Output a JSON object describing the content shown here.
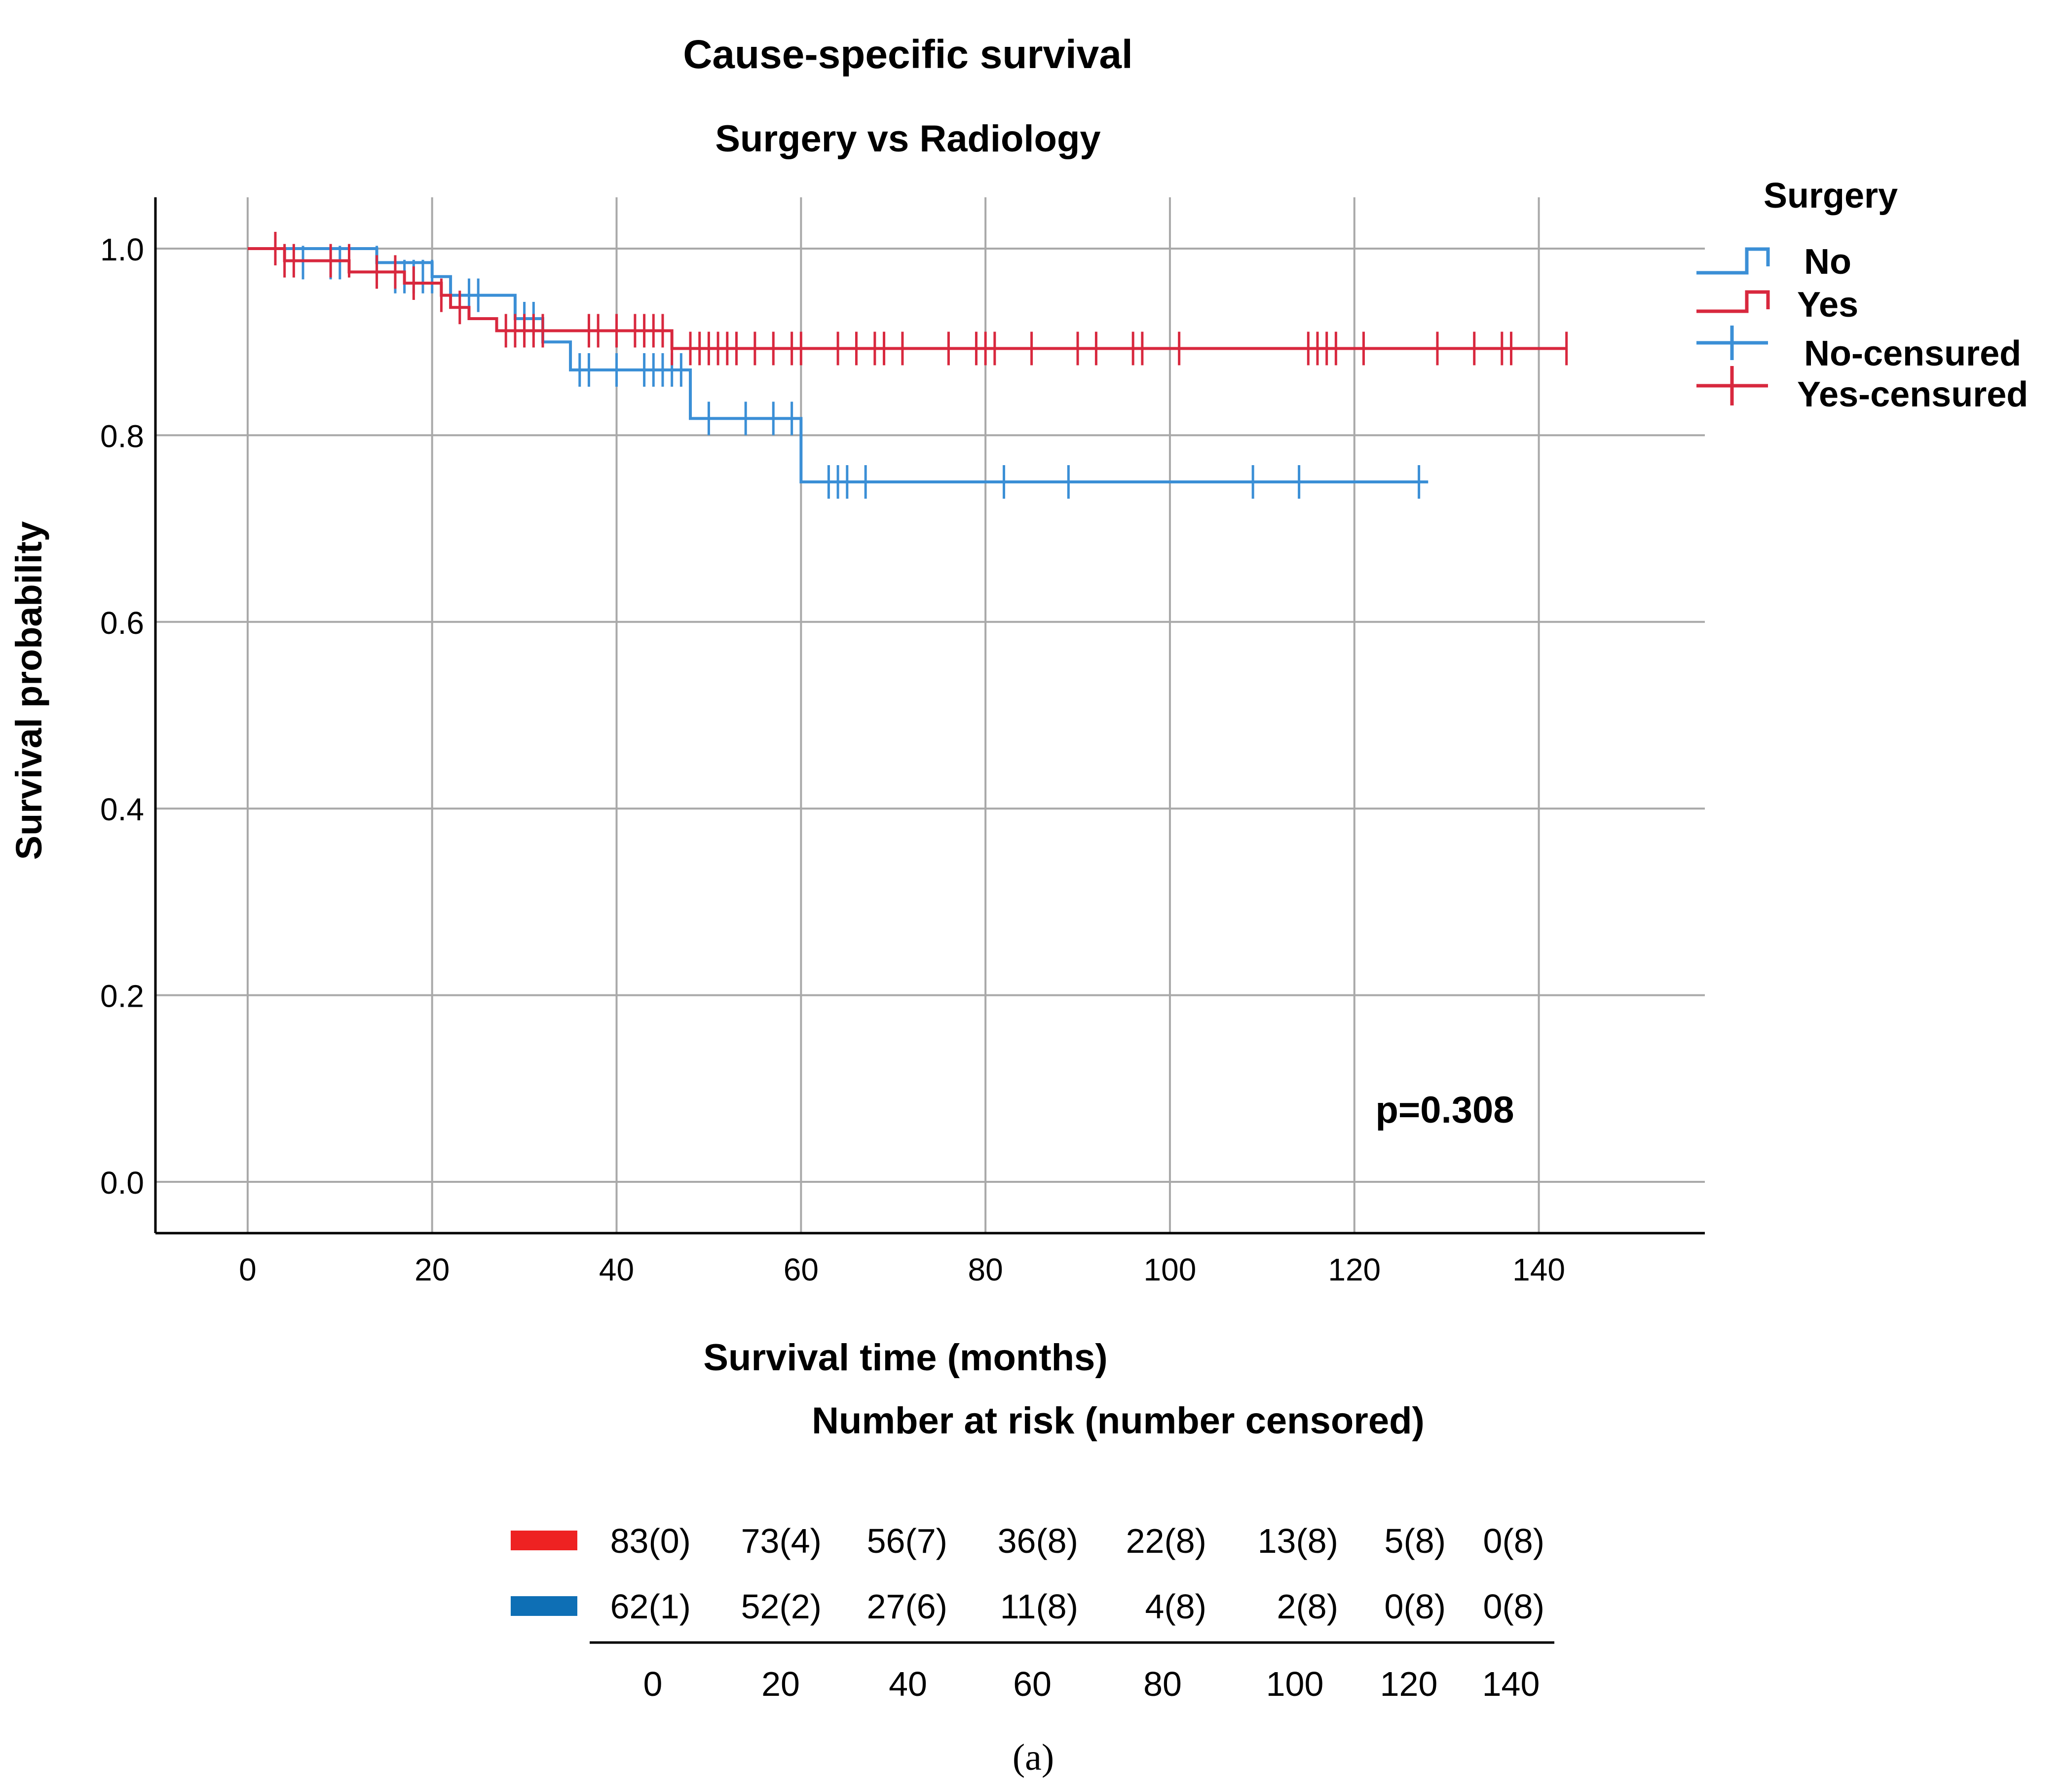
{
  "chart_data": {
    "type": "line",
    "subtype": "kaplan-meier",
    "title": "Cause-specific survival",
    "subtitle": "Surgery vs Radiology",
    "xlabel": "Survival time (months)",
    "ylabel": "Survival probability",
    "xlim": [
      -10,
      158
    ],
    "ylim": [
      -0.055,
      1.055
    ],
    "x_ticks": [
      "0",
      "20",
      "40",
      "60",
      "80",
      "100",
      "120",
      "140"
    ],
    "y_ticks": [
      "0.0",
      "0.2",
      "0.4",
      "0.6",
      "0.8",
      "1.0"
    ],
    "grid": true,
    "legend": {
      "title": "Surgery",
      "position": "right",
      "entries": [
        "No",
        "Yes",
        "No-censured",
        "Yes-censured"
      ]
    },
    "annotation": "p=0.308",
    "series": [
      {
        "name": "No",
        "color": "#3b8fd6",
        "steps": [
          [
            0,
            1.0
          ],
          [
            14,
            0.985
          ],
          [
            20,
            0.97
          ],
          [
            22,
            0.95
          ],
          [
            29,
            0.925
          ],
          [
            32,
            0.9
          ],
          [
            35,
            0.87
          ],
          [
            48,
            0.818
          ],
          [
            60,
            0.75
          ],
          [
            128,
            0.75
          ]
        ],
        "censored": [
          [
            6,
            0.985
          ],
          [
            9,
            0.985
          ],
          [
            10,
            0.985
          ],
          [
            14,
            0.985
          ],
          [
            16,
            0.97
          ],
          [
            17,
            0.97
          ],
          [
            18,
            0.97
          ],
          [
            19,
            0.97
          ],
          [
            20,
            0.97
          ],
          [
            24,
            0.95
          ],
          [
            25,
            0.95
          ],
          [
            30,
            0.925
          ],
          [
            31,
            0.925
          ],
          [
            36,
            0.87
          ],
          [
            37,
            0.87
          ],
          [
            40,
            0.87
          ],
          [
            43,
            0.87
          ],
          [
            44,
            0.87
          ],
          [
            45,
            0.87
          ],
          [
            46,
            0.87
          ],
          [
            47,
            0.87
          ],
          [
            50,
            0.818
          ],
          [
            54,
            0.818
          ],
          [
            57,
            0.818
          ],
          [
            59,
            0.818
          ],
          [
            63,
            0.75
          ],
          [
            64,
            0.75
          ],
          [
            65,
            0.75
          ],
          [
            67,
            0.75
          ],
          [
            82,
            0.75
          ],
          [
            89,
            0.75
          ],
          [
            109,
            0.75
          ],
          [
            114,
            0.75
          ],
          [
            127,
            0.75
          ]
        ]
      },
      {
        "name": "Yes",
        "color": "#d8283e",
        "steps": [
          [
            0,
            1.0
          ],
          [
            4,
            0.987
          ],
          [
            11,
            0.975
          ],
          [
            17,
            0.963
          ],
          [
            21,
            0.95
          ],
          [
            22,
            0.937
          ],
          [
            24,
            0.925
          ],
          [
            27,
            0.912
          ],
          [
            46,
            0.893
          ],
          [
            143,
            0.893
          ]
        ],
        "censored": [
          [
            3,
            1.0
          ],
          [
            4,
            0.987
          ],
          [
            5,
            0.987
          ],
          [
            9,
            0.987
          ],
          [
            11,
            0.987
          ],
          [
            14,
            0.975
          ],
          [
            16,
            0.975
          ],
          [
            18,
            0.963
          ],
          [
            21,
            0.95
          ],
          [
            23,
            0.937
          ],
          [
            28,
            0.912
          ],
          [
            29,
            0.912
          ],
          [
            30,
            0.912
          ],
          [
            31,
            0.912
          ],
          [
            32,
            0.912
          ],
          [
            37,
            0.912
          ],
          [
            38,
            0.912
          ],
          [
            40,
            0.912
          ],
          [
            42,
            0.912
          ],
          [
            43,
            0.912
          ],
          [
            44,
            0.912
          ],
          [
            45,
            0.912
          ],
          [
            46,
            0.893
          ],
          [
            48,
            0.893
          ],
          [
            49,
            0.893
          ],
          [
            50,
            0.893
          ],
          [
            51,
            0.893
          ],
          [
            52,
            0.893
          ],
          [
            53,
            0.893
          ],
          [
            55,
            0.893
          ],
          [
            57,
            0.893
          ],
          [
            59,
            0.893
          ],
          [
            60,
            0.893
          ],
          [
            64,
            0.893
          ],
          [
            66,
            0.893
          ],
          [
            68,
            0.893
          ],
          [
            69,
            0.893
          ],
          [
            71,
            0.893
          ],
          [
            76,
            0.893
          ],
          [
            79,
            0.893
          ],
          [
            80,
            0.893
          ],
          [
            81,
            0.893
          ],
          [
            85,
            0.893
          ],
          [
            90,
            0.893
          ],
          [
            92,
            0.893
          ],
          [
            96,
            0.893
          ],
          [
            97,
            0.893
          ],
          [
            101,
            0.893
          ],
          [
            115,
            0.893
          ],
          [
            116,
            0.893
          ],
          [
            117,
            0.893
          ],
          [
            118,
            0.893
          ],
          [
            121,
            0.893
          ],
          [
            129,
            0.893
          ],
          [
            133,
            0.893
          ],
          [
            136,
            0.893
          ],
          [
            137,
            0.893
          ],
          [
            143,
            0.893
          ]
        ]
      }
    ],
    "risk_table": {
      "title": "Number at risk (number censored)",
      "times": [
        "0",
        "20",
        "40",
        "60",
        "80",
        "100",
        "120",
        "140"
      ],
      "rows": [
        {
          "color": "#ee2222",
          "cells": [
            "83(0)",
            "73(4)",
            "56(7)",
            "36(8)",
            "22(8)",
            "13(8)",
            "5(8)",
            "0(8)"
          ]
        },
        {
          "color": "#0e6fb5",
          "cells": [
            "62(1)",
            "52(2)",
            "27(6)",
            "11(8)",
            "4(8)",
            "2(8)",
            "0(8)",
            "0(8)"
          ]
        }
      ]
    }
  },
  "caption": "(a)"
}
